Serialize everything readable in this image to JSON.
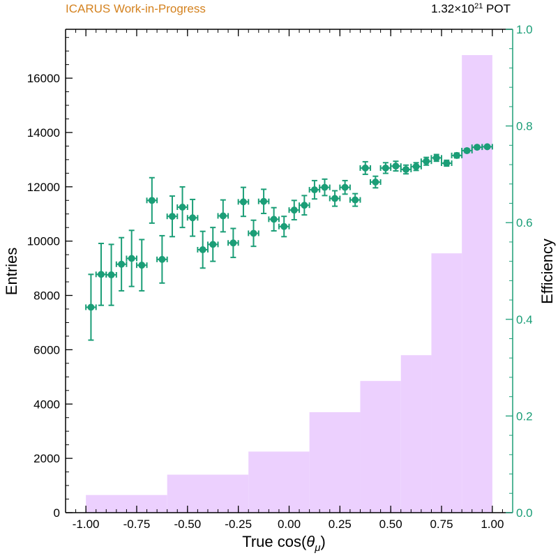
{
  "header": {
    "experiment_label": "ICARUS Work-in-Progress",
    "exposure_mantissa": "1.32×10",
    "exposure_exponent": "21",
    "exposure_unit": " POT"
  },
  "colors": {
    "experiment_label": "#d4821f",
    "histogram_fill": "#ecd0fe",
    "efficiency_marker": "#1b9e77",
    "axis": "#000000"
  },
  "chart_data": {
    "type": "bar",
    "title": "",
    "xlabel": "True cos(θ_μ)",
    "xlabel_main": "True cos(",
    "xlabel_symbol": "θ",
    "xlabel_subscript": "μ",
    "xlabel_close": ")",
    "ylabel": "Entries",
    "y2label": "Efficiency",
    "xlim": [
      -1.1,
      1.1
    ],
    "ylim": [
      0,
      17800
    ],
    "y2lim": [
      0.0,
      1.0
    ],
    "grid": false,
    "x_ticks": [
      -1.0,
      -0.75,
      -0.5,
      -0.25,
      0.0,
      0.25,
      0.5,
      0.75,
      1.0
    ],
    "x_tick_labels": [
      "-1.00",
      "-0.75",
      "-0.50",
      "-0.25",
      "0.00",
      "0.25",
      "0.50",
      "0.75",
      "1.00"
    ],
    "y_ticks": [
      0,
      2000,
      4000,
      6000,
      8000,
      10000,
      12000,
      14000,
      16000
    ],
    "y_tick_labels": [
      "0",
      "2000",
      "4000",
      "6000",
      "8000",
      "10000",
      "12000",
      "14000",
      "16000"
    ],
    "y2_ticks": [
      0.0,
      0.2,
      0.4,
      0.6,
      0.8,
      1.0
    ],
    "y2_tick_labels": [
      "0.0",
      "0.2",
      "0.4",
      "0.6",
      "0.8",
      "1.0"
    ],
    "series": [
      {
        "kind": "histogram",
        "axis": "left",
        "bin_edges": [
          -1.0,
          -0.6,
          -0.2,
          0.1,
          0.35,
          0.55,
          0.7,
          0.85,
          1.0
        ],
        "values": [
          650,
          1400,
          2250,
          3700,
          4850,
          5800,
          9550,
          16850
        ]
      },
      {
        "kind": "errorbar",
        "axis": "right",
        "bin_width": 0.05,
        "x": [
          -0.975,
          -0.925,
          -0.875,
          -0.825,
          -0.775,
          -0.725,
          -0.675,
          -0.625,
          -0.575,
          -0.525,
          -0.475,
          -0.425,
          -0.375,
          -0.325,
          -0.275,
          -0.225,
          -0.175,
          -0.125,
          -0.075,
          -0.025,
          0.025,
          0.075,
          0.125,
          0.175,
          0.225,
          0.275,
          0.325,
          0.375,
          0.425,
          0.475,
          0.525,
          0.575,
          0.625,
          0.675,
          0.725,
          0.775,
          0.825,
          0.875,
          0.925,
          0.975
        ],
        "y": [
          0.425,
          0.493,
          0.492,
          0.514,
          0.526,
          0.512,
          0.646,
          0.524,
          0.613,
          0.632,
          0.61,
          0.544,
          0.555,
          0.614,
          0.558,
          0.643,
          0.578,
          0.644,
          0.607,
          0.592,
          0.626,
          0.636,
          0.668,
          0.673,
          0.65,
          0.673,
          0.647,
          0.713,
          0.684,
          0.713,
          0.717,
          0.71,
          0.716,
          0.727,
          0.734,
          0.723,
          0.739,
          0.749,
          0.756,
          0.757
        ],
        "yerr": [
          0.068,
          0.064,
          0.063,
          0.055,
          0.058,
          0.053,
          0.047,
          0.049,
          0.042,
          0.042,
          0.038,
          0.038,
          0.035,
          0.033,
          0.03,
          0.03,
          0.027,
          0.025,
          0.024,
          0.021,
          0.02,
          0.02,
          0.019,
          0.017,
          0.016,
          0.014,
          0.013,
          0.013,
          0.012,
          0.011,
          0.01,
          0.009,
          0.008,
          0.008,
          0.007,
          0.006,
          0.005,
          0.004,
          0.003,
          0.003
        ]
      }
    ]
  }
}
